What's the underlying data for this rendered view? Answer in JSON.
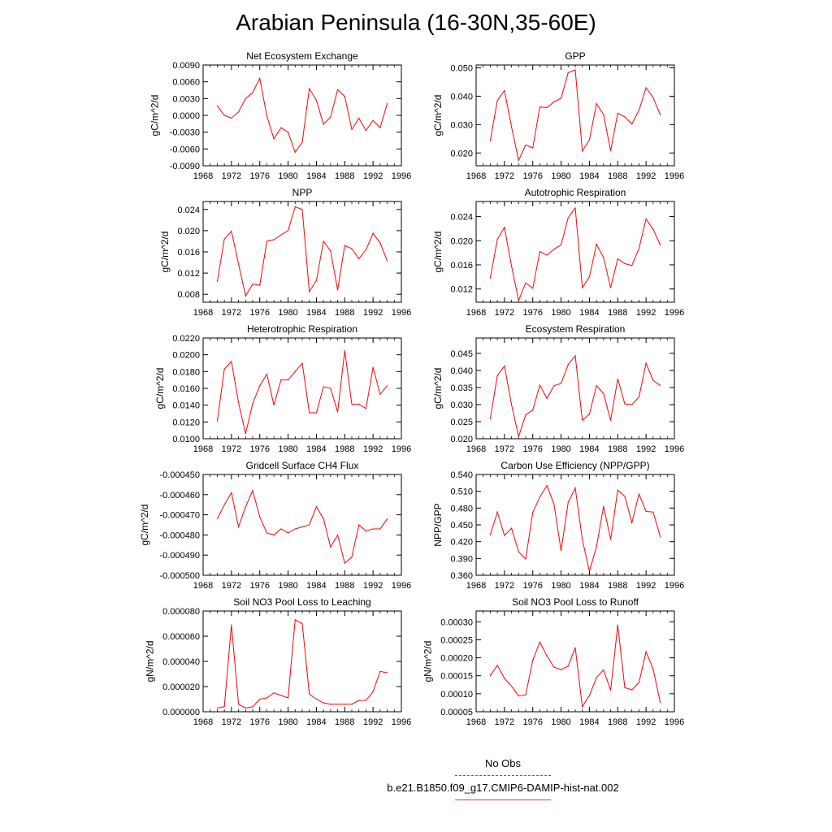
{
  "title": "Arabian Peninsula (16-30N,35-60E)",
  "legend": [
    {
      "label": "No Obs",
      "color": "#5555cc",
      "dash": true
    },
    {
      "label": "b.e21.B1850.f09_g17.CMIP6-DAMIP-hist-nat.002",
      "color": "#e04040",
      "dash": false
    }
  ],
  "line_color": "#ff0000",
  "chart_data": [
    {
      "type": "line",
      "title": "Net Ecosystem Exchange",
      "ylabel": "gC/m^2/d",
      "xlim": [
        1968,
        1996
      ],
      "xticks": [
        1968,
        1972,
        1976,
        1980,
        1984,
        1988,
        1992,
        1996
      ],
      "ylim": [
        -0.009,
        0.009
      ],
      "yticks": [
        -0.009,
        -0.006,
        -0.003,
        0,
        0.003,
        0.006,
        0.009
      ],
      "ytick_labels": [
        "-0.0090",
        "-0.0060",
        "-0.0030",
        "0.0000",
        "0.0030",
        "0.0060",
        "0.0090"
      ],
      "x": [
        1970,
        1971,
        1972,
        1973,
        1974,
        1975,
        1976,
        1977,
        1978,
        1979,
        1980,
        1981,
        1982,
        1983,
        1984,
        1985,
        1986,
        1987,
        1988,
        1989,
        1990,
        1991,
        1992,
        1993,
        1994
      ],
      "y": [
        0.0017,
        0.0,
        -0.0005,
        0.0006,
        0.003,
        0.0041,
        0.0066,
        -0.0001,
        -0.0042,
        -0.0022,
        -0.003,
        -0.0066,
        -0.0048,
        0.0048,
        0.0027,
        -0.0016,
        -0.0003,
        0.0046,
        0.0034,
        -0.0025,
        -0.0005,
        -0.0027,
        -0.0009,
        -0.0022,
        0.0021
      ]
    },
    {
      "type": "line",
      "title": "GPP",
      "ylabel": "gC/m^2/d",
      "xlim": [
        1968,
        1996
      ],
      "xticks": [
        1968,
        1972,
        1976,
        1980,
        1984,
        1988,
        1992,
        1996
      ],
      "ylim": [
        0.0155,
        0.051
      ],
      "yticks": [
        0.02,
        0.03,
        0.04,
        0.05
      ],
      "ytick_labels": [
        "0.020",
        "0.030",
        "0.040",
        "0.050"
      ],
      "x": [
        1970,
        1971,
        1972,
        1973,
        1974,
        1975,
        1976,
        1977,
        1978,
        1979,
        1980,
        1981,
        1982,
        1983,
        1984,
        1985,
        1986,
        1987,
        1988,
        1989,
        1990,
        1991,
        1992,
        1993,
        1994
      ],
      "y": [
        0.0243,
        0.0385,
        0.042,
        0.0292,
        0.0174,
        0.0228,
        0.0218,
        0.0362,
        0.036,
        0.038,
        0.0393,
        0.0483,
        0.0493,
        0.0207,
        0.0246,
        0.0374,
        0.0335,
        0.0208,
        0.034,
        0.0327,
        0.0302,
        0.035,
        0.043,
        0.0395,
        0.0335
      ]
    },
    {
      "type": "line",
      "title": "NPP",
      "ylabel": "gC/m^2/d",
      "xlim": [
        1968,
        1996
      ],
      "xticks": [
        1968,
        1972,
        1976,
        1980,
        1984,
        1988,
        1992,
        1996
      ],
      "ylim": [
        0.0065,
        0.0255
      ],
      "yticks": [
        0.008,
        0.012,
        0.016,
        0.02,
        0.024
      ],
      "ytick_labels": [
        "0.008",
        "0.012",
        "0.016",
        "0.020",
        "0.024"
      ],
      "x": [
        1970,
        1971,
        1972,
        1973,
        1974,
        1975,
        1976,
        1977,
        1978,
        1979,
        1980,
        1981,
        1982,
        1983,
        1984,
        1985,
        1986,
        1987,
        1988,
        1989,
        1990,
        1991,
        1992,
        1993,
        1994
      ],
      "y": [
        0.0104,
        0.0184,
        0.0199,
        0.0137,
        0.0077,
        0.0099,
        0.0097,
        0.018,
        0.0183,
        0.0192,
        0.02,
        0.0245,
        0.024,
        0.0085,
        0.0106,
        0.018,
        0.0162,
        0.0088,
        0.0172,
        0.0166,
        0.0147,
        0.0164,
        0.0195,
        0.0177,
        0.0143
      ]
    },
    {
      "type": "line",
      "title": "Autotrophic Respiration",
      "ylabel": "gC/m^2/d",
      "xlim": [
        1968,
        1996
      ],
      "xticks": [
        1968,
        1972,
        1976,
        1980,
        1984,
        1988,
        1992,
        1996
      ],
      "ylim": [
        0.0098,
        0.0265
      ],
      "yticks": [
        0.012,
        0.016,
        0.02,
        0.024
      ],
      "ytick_labels": [
        "0.012",
        "0.016",
        "0.020",
        "0.024"
      ],
      "x": [
        1970,
        1971,
        1972,
        1973,
        1974,
        1975,
        1976,
        1977,
        1978,
        1979,
        1980,
        1981,
        1982,
        1983,
        1984,
        1985,
        1986,
        1987,
        1988,
        1989,
        1990,
        1991,
        1992,
        1993,
        1994
      ],
      "y": [
        0.0138,
        0.0202,
        0.0222,
        0.0158,
        0.0101,
        0.013,
        0.0121,
        0.0182,
        0.0176,
        0.0186,
        0.0193,
        0.0238,
        0.0254,
        0.0122,
        0.014,
        0.0194,
        0.0172,
        0.0122,
        0.017,
        0.0162,
        0.0159,
        0.0187,
        0.0236,
        0.0219,
        0.0193
      ]
    },
    {
      "type": "line",
      "title": "Heterotrophic Respiration",
      "ylabel": "gC/m^2/d",
      "xlim": [
        1968,
        1996
      ],
      "xticks": [
        1968,
        1972,
        1976,
        1980,
        1984,
        1988,
        1992,
        1996
      ],
      "ylim": [
        0.01,
        0.022
      ],
      "yticks": [
        0.01,
        0.012,
        0.014,
        0.016,
        0.018,
        0.02,
        0.022
      ],
      "ytick_labels": [
        "0.0100",
        "0.0120",
        "0.0140",
        "0.0160",
        "0.0180",
        "0.0200",
        "0.0220"
      ],
      "x": [
        1970,
        1971,
        1972,
        1973,
        1974,
        1975,
        1976,
        1977,
        1978,
        1979,
        1980,
        1981,
        1982,
        1983,
        1984,
        1985,
        1986,
        1987,
        1988,
        1989,
        1990,
        1991,
        1992,
        1993,
        1994
      ],
      "y": [
        0.0121,
        0.0183,
        0.0192,
        0.0143,
        0.0106,
        0.0142,
        0.0163,
        0.0177,
        0.014,
        0.017,
        0.017,
        0.018,
        0.019,
        0.0131,
        0.0131,
        0.0162,
        0.016,
        0.0132,
        0.0205,
        0.0141,
        0.0141,
        0.0136,
        0.0185,
        0.0153,
        0.0163
      ]
    },
    {
      "type": "line",
      "title": "Ecosystem Respiration",
      "ylabel": "gC/m^2/d",
      "xlim": [
        1968,
        1996
      ],
      "xticks": [
        1968,
        1972,
        1976,
        1980,
        1984,
        1988,
        1992,
        1996
      ],
      "ylim": [
        0.02,
        0.0495
      ],
      "yticks": [
        0.02,
        0.025,
        0.03,
        0.035,
        0.04,
        0.045
      ],
      "ytick_labels": [
        "0.020",
        "0.025",
        "0.030",
        "0.035",
        "0.040",
        "0.045"
      ],
      "x": [
        1970,
        1971,
        1972,
        1973,
        1974,
        1975,
        1976,
        1977,
        1978,
        1979,
        1980,
        1981,
        1982,
        1983,
        1984,
        1985,
        1986,
        1987,
        1988,
        1989,
        1990,
        1991,
        1992,
        1993,
        1994
      ],
      "y": [
        0.0259,
        0.0385,
        0.0413,
        0.03,
        0.0206,
        0.027,
        0.0284,
        0.0357,
        0.0318,
        0.0355,
        0.0362,
        0.0417,
        0.0443,
        0.0254,
        0.0272,
        0.0356,
        0.0332,
        0.0254,
        0.0375,
        0.0302,
        0.03,
        0.0322,
        0.0421,
        0.0371,
        0.0356
      ]
    },
    {
      "type": "line",
      "title": "Gridcell Surface CH4 Flux",
      "ylabel": "gC/m^2/d",
      "xlim": [
        1968,
        1996
      ],
      "xticks": [
        1968,
        1972,
        1976,
        1980,
        1984,
        1988,
        1992,
        1996
      ],
      "ylim": [
        -0.0005,
        -0.00045
      ],
      "yticks": [
        -0.0005,
        -0.00049,
        -0.00048,
        -0.00047,
        -0.00046,
        -0.00045
      ],
      "ytick_labels": [
        "-0.000500",
        "-0.000490",
        "-0.000480",
        "-0.000470",
        "-0.000460",
        "-0.000450"
      ],
      "x": [
        1970,
        1971,
        1972,
        1973,
        1974,
        1975,
        1976,
        1977,
        1978,
        1979,
        1980,
        1981,
        1982,
        1983,
        1984,
        1985,
        1986,
        1987,
        1988,
        1989,
        1990,
        1991,
        1992,
        1993,
        1994
      ],
      "y": [
        -0.000472,
        -0.000465,
        -0.000459,
        -0.000476,
        -0.000466,
        -0.000458,
        -0.000471,
        -0.000479,
        -0.00048,
        -0.000477,
        -0.000479,
        -0.000477,
        -0.000476,
        -0.000475,
        -0.000466,
        -0.000472,
        -0.000486,
        -0.00048,
        -0.000494,
        -0.000491,
        -0.000475,
        -0.000478,
        -0.000477,
        -0.000477,
        -0.000472
      ]
    },
    {
      "type": "line",
      "title": "Carbon Use Efficiency (NPP/GPP)",
      "ylabel": "NPP/GPP",
      "xlim": [
        1968,
        1996
      ],
      "xticks": [
        1968,
        1972,
        1976,
        1980,
        1984,
        1988,
        1992,
        1996
      ],
      "ylim": [
        0.36,
        0.54
      ],
      "yticks": [
        0.36,
        0.39,
        0.42,
        0.45,
        0.48,
        0.51,
        0.54
      ],
      "ytick_labels": [
        "0.360",
        "0.390",
        "0.420",
        "0.450",
        "0.480",
        "0.510",
        "0.540"
      ],
      "x": [
        1970,
        1971,
        1972,
        1973,
        1974,
        1975,
        1976,
        1977,
        1978,
        1979,
        1980,
        1981,
        1982,
        1983,
        1984,
        1985,
        1986,
        1987,
        1988,
        1989,
        1990,
        1991,
        1992,
        1993,
        1994
      ],
      "y": [
        0.432,
        0.473,
        0.431,
        0.444,
        0.402,
        0.389,
        0.472,
        0.5,
        0.52,
        0.487,
        0.404,
        0.49,
        0.516,
        0.424,
        0.367,
        0.411,
        0.483,
        0.424,
        0.512,
        0.501,
        0.454,
        0.505,
        0.474,
        0.473,
        0.429
      ]
    },
    {
      "type": "line",
      "title": "Soil NO3 Pool Loss to Leaching",
      "ylabel": "gN/m^2/d",
      "xlim": [
        1968,
        1996
      ],
      "xticks": [
        1968,
        1972,
        1976,
        1980,
        1984,
        1988,
        1992,
        1996
      ],
      "ylim": [
        0,
        8e-05
      ],
      "yticks": [
        0,
        2e-05,
        4e-05,
        6e-05,
        8e-05
      ],
      "ytick_labels": [
        "0.000000",
        "0.000020",
        "0.000040",
        "0.000060",
        "0.000080"
      ],
      "x": [
        1970,
        1971,
        1972,
        1973,
        1974,
        1975,
        1976,
        1977,
        1978,
        1979,
        1980,
        1981,
        1982,
        1983,
        1984,
        1985,
        1986,
        1987,
        1988,
        1989,
        1990,
        1991,
        1992,
        1993,
        1994
      ],
      "y": [
        3e-06,
        4e-06,
        6.9e-05,
        6e-06,
        3e-06,
        4e-06,
        1e-05,
        1.1e-05,
        1.5e-05,
        1.3e-05,
        1.1e-05,
        7.3e-05,
        7e-05,
        1.4e-05,
        1e-05,
        7e-06,
        6e-06,
        6e-06,
        6e-06,
        6e-06,
        9e-06,
        9e-06,
        1.6e-05,
        3.2e-05,
        3.1e-05
      ]
    },
    {
      "type": "line",
      "title": "Soil NO3 Pool Loss to Runoff",
      "ylabel": "gN/m^2/d",
      "xlim": [
        1968,
        1996
      ],
      "xticks": [
        1968,
        1972,
        1976,
        1980,
        1984,
        1988,
        1992,
        1996
      ],
      "ylim": [
        5e-05,
        0.00033
      ],
      "yticks": [
        5e-05,
        0.0001,
        0.00015,
        0.0002,
        0.00025,
        0.0003
      ],
      "ytick_labels": [
        "0.00005",
        "0.00010",
        "0.00015",
        "0.00020",
        "0.00025",
        "0.00030"
      ],
      "x": [
        1970,
        1971,
        1972,
        1973,
        1974,
        1975,
        1976,
        1977,
        1978,
        1979,
        1980,
        1981,
        1982,
        1983,
        1984,
        1985,
        1986,
        1987,
        1988,
        1989,
        1990,
        1991,
        1992,
        1993,
        1994
      ],
      "y": [
        0.00015,
        0.000179,
        0.000143,
        0.000121,
        9.4e-05,
        9.7e-05,
        0.000193,
        0.000244,
        0.000205,
        0.000174,
        0.000167,
        0.000177,
        0.000228,
        6.4e-05,
        9.5e-05,
        0.000145,
        0.000166,
        0.00011,
        0.000291,
        0.000117,
        0.000111,
        0.000131,
        0.000217,
        0.000169,
        7.6e-05
      ]
    }
  ]
}
